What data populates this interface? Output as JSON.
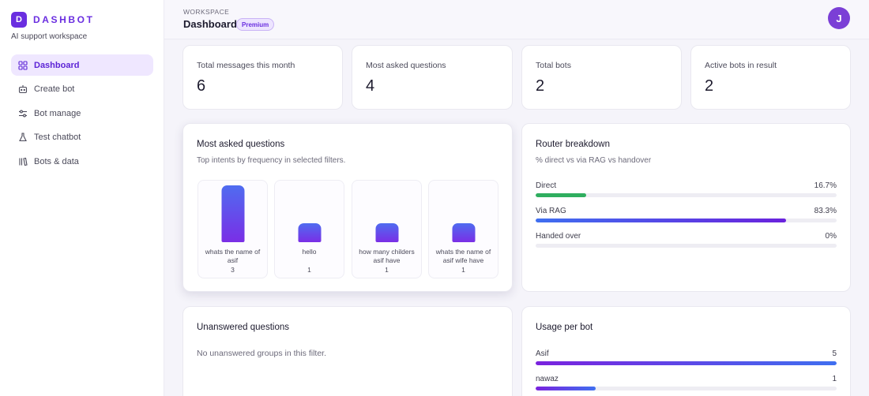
{
  "brand": {
    "logo_letter": "D",
    "name": "DASHBOT",
    "subtitle": "AI support workspace"
  },
  "sidebar": {
    "items": [
      {
        "label": "Dashboard",
        "icon": "grid-icon",
        "active": true
      },
      {
        "label": "Create bot",
        "icon": "bot-icon",
        "active": false
      },
      {
        "label": "Bot manage",
        "icon": "settings-sliders-icon",
        "active": false
      },
      {
        "label": "Test chatbot",
        "icon": "flask-icon",
        "active": false
      },
      {
        "label": "Bots & data",
        "icon": "library-icon",
        "active": false
      }
    ]
  },
  "header": {
    "workspace_label": "WORKSPACE",
    "title": "Dashboard",
    "badge": "Premium",
    "avatar_letter": "J"
  },
  "stats": [
    {
      "label": "Total messages this month",
      "value": "6"
    },
    {
      "label": "Most asked questions",
      "value": "4"
    },
    {
      "label": "Total bots",
      "value": "2"
    },
    {
      "label": "Active bots in result",
      "value": "2"
    }
  ],
  "most_asked": {
    "title": "Most asked questions",
    "subtitle": "Top intents by frequency in selected filters.",
    "items": [
      {
        "label": "whats the name of asif",
        "count": 3
      },
      {
        "label": "hello",
        "count": 1
      },
      {
        "label": "how many childers asif have",
        "count": 1
      },
      {
        "label": "whats the name of asif wife have",
        "count": 1
      }
    ]
  },
  "router": {
    "title": "Router breakdown",
    "subtitle": "% direct vs via RAG vs handover",
    "rows": [
      {
        "label": "Direct",
        "percent_label": "16.7%",
        "value": 16.7,
        "color": "#2fae5f"
      },
      {
        "label": "Via RAG",
        "percent_label": "83.3%",
        "value": 83.3,
        "color": "#5a3be6"
      },
      {
        "label": "Handed over",
        "percent_label": "0%",
        "value": 0,
        "color": "#9a9aa8"
      }
    ]
  },
  "unanswered": {
    "title": "Unanswered questions",
    "empty_text": "No unanswered groups in this filter."
  },
  "usage": {
    "title": "Usage per bot",
    "rows": [
      {
        "label": "Asif",
        "count": "5",
        "value": 5
      },
      {
        "label": "nawaz",
        "count": "1",
        "value": 1
      }
    ]
  },
  "colors": {
    "accent": "#6a2ee0",
    "accent_soft": "#efe7ff",
    "bar_top": "#4f6cf0",
    "bar_bottom": "#7a2ee6"
  }
}
